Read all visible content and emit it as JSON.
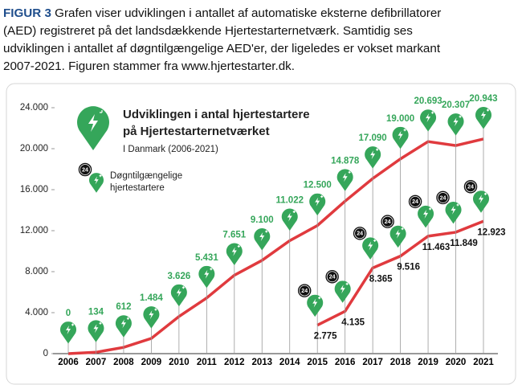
{
  "caption": {
    "label": "FIGUR 3",
    "lines": [
      "Grafen viser udviklingen i antallet af automatiske eksterne defibrillatorer",
      "(AED) registreret på det landsdækkende Hjertestarternetværk. Samtidig ses",
      "udviklingen i antallet af døgntilgængelige AED'er, der ligeledes er vokset markant",
      "2007-2021. Figuren stammer fra www.hjertestarter.dk."
    ]
  },
  "chart_data": {
    "type": "line",
    "title_lines": [
      "Udviklingen i antal hjertestartere",
      "på Hjertestarternetværket"
    ],
    "subtitle": "I Danmark (2006-2021)",
    "categories": [
      "2006",
      "2007",
      "2008",
      "2009",
      "2010",
      "2011",
      "2012",
      "2013",
      "2014",
      "2015",
      "2016",
      "2017",
      "2018",
      "2019",
      "2020",
      "2021"
    ],
    "series": [
      {
        "color": "#e03a3e",
        "marker_color": "#35a65a",
        "values": [
          0,
          134,
          612,
          1484,
          3626,
          5431,
          7651,
          9100,
          11022,
          12500,
          14878,
          17090,
          19000,
          20693,
          20307,
          20943
        ],
        "value_labels": [
          "0",
          "134",
          "612",
          "1.484",
          "3.626",
          "5.431",
          "7.651",
          "9.100",
          "11.022",
          "12.500",
          "14.878",
          "17.090",
          "19.000",
          "20.693",
          "20.307",
          "20.943"
        ]
      },
      {
        "name": "Døgntilgængelige hjertestartere",
        "icon": "24",
        "color": "#e03a3e",
        "marker_color": "#35a65a",
        "values": [
          null,
          null,
          null,
          null,
          null,
          null,
          null,
          null,
          null,
          2775,
          4135,
          8365,
          9516,
          11463,
          11849,
          12923
        ],
        "value_labels": [
          null,
          null,
          null,
          null,
          null,
          null,
          null,
          null,
          null,
          "2.775",
          "4.135",
          "8.365",
          "9.516",
          "11.463",
          "11.849",
          "12.923"
        ]
      }
    ],
    "ylim": [
      0,
      24000
    ],
    "yticks": [
      0,
      {
        "value": 4000,
        "label": "4.000"
      },
      {
        "value": 8000,
        "label": "8.000"
      },
      {
        "value": 12000,
        "label": "12.000"
      },
      {
        "value": 16000,
        "label": "16.000"
      },
      {
        "value": 20000,
        "label": "20.000"
      },
      {
        "value": 24000,
        "label": "24.000"
      }
    ]
  }
}
